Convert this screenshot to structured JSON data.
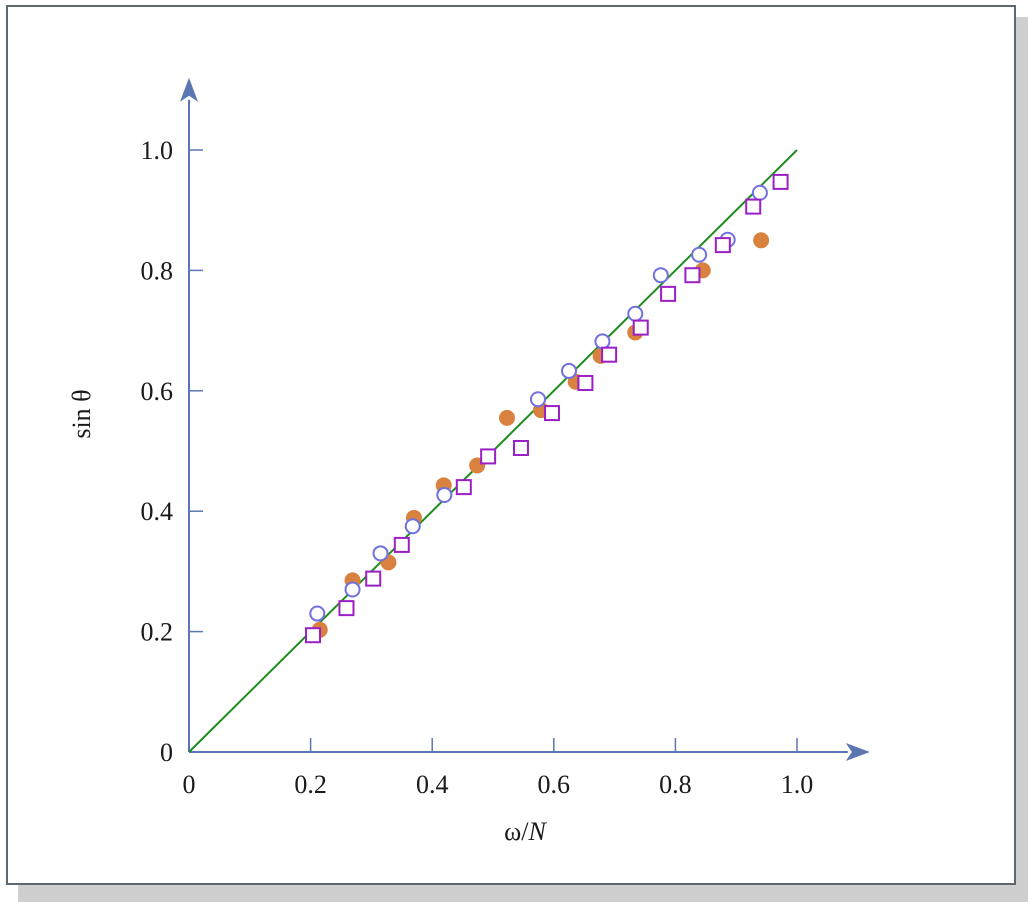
{
  "chart_data": {
    "type": "scatter",
    "title": "",
    "xlabel": "ω/",
    "xlabel_italic": "N",
    "ylabel": "sin θ",
    "xlim": [
      0,
      1.1
    ],
    "ylim": [
      0,
      1.1
    ],
    "x_ticks": [
      "0",
      "0.2",
      "0.4",
      "0.6",
      "0.8",
      "1.0"
    ],
    "y_ticks": [
      "0",
      "0.2",
      "0.4",
      "0.6",
      "0.8",
      "1.0"
    ],
    "grid": false,
    "legend": "none",
    "reference_line": {
      "x": [
        0,
        1.0
      ],
      "y": [
        0,
        1.0
      ],
      "color": "#1e8c1e"
    },
    "series": [
      {
        "marker": "filled-circle",
        "color": "#d9813f",
        "points": [
          [
            0.215,
            0.203
          ],
          [
            0.269,
            0.285
          ],
          [
            0.328,
            0.315
          ],
          [
            0.37,
            0.389
          ],
          [
            0.419,
            0.443
          ],
          [
            0.474,
            0.476
          ],
          [
            0.523,
            0.555
          ],
          [
            0.579,
            0.568
          ],
          [
            0.636,
            0.615
          ],
          [
            0.677,
            0.658
          ],
          [
            0.734,
            0.697
          ],
          [
            0.845,
            0.8
          ],
          [
            0.941,
            0.85
          ]
        ]
      },
      {
        "marker": "open-circle",
        "color": "#7070e0",
        "points": [
          [
            0.211,
            0.23
          ],
          [
            0.269,
            0.27
          ],
          [
            0.315,
            0.33
          ],
          [
            0.368,
            0.375
          ],
          [
            0.42,
            0.427
          ],
          [
            0.574,
            0.586
          ],
          [
            0.625,
            0.633
          ],
          [
            0.68,
            0.682
          ],
          [
            0.734,
            0.728
          ],
          [
            0.776,
            0.792
          ],
          [
            0.839,
            0.826
          ],
          [
            0.886,
            0.851
          ],
          [
            0.939,
            0.929
          ]
        ]
      },
      {
        "marker": "open-square",
        "color": "#9b1fc4",
        "points": [
          [
            0.204,
            0.194
          ],
          [
            0.259,
            0.239
          ],
          [
            0.303,
            0.288
          ],
          [
            0.35,
            0.344
          ],
          [
            0.452,
            0.44
          ],
          [
            0.492,
            0.491
          ],
          [
            0.546,
            0.505
          ],
          [
            0.597,
            0.563
          ],
          [
            0.652,
            0.613
          ],
          [
            0.691,
            0.66
          ],
          [
            0.743,
            0.705
          ],
          [
            0.788,
            0.761
          ],
          [
            0.828,
            0.792
          ],
          [
            0.878,
            0.842
          ],
          [
            0.928,
            0.906
          ],
          [
            0.973,
            0.947
          ]
        ]
      }
    ]
  },
  "colors": {
    "axis": "#5b77b3",
    "frame": "#5e666e"
  }
}
